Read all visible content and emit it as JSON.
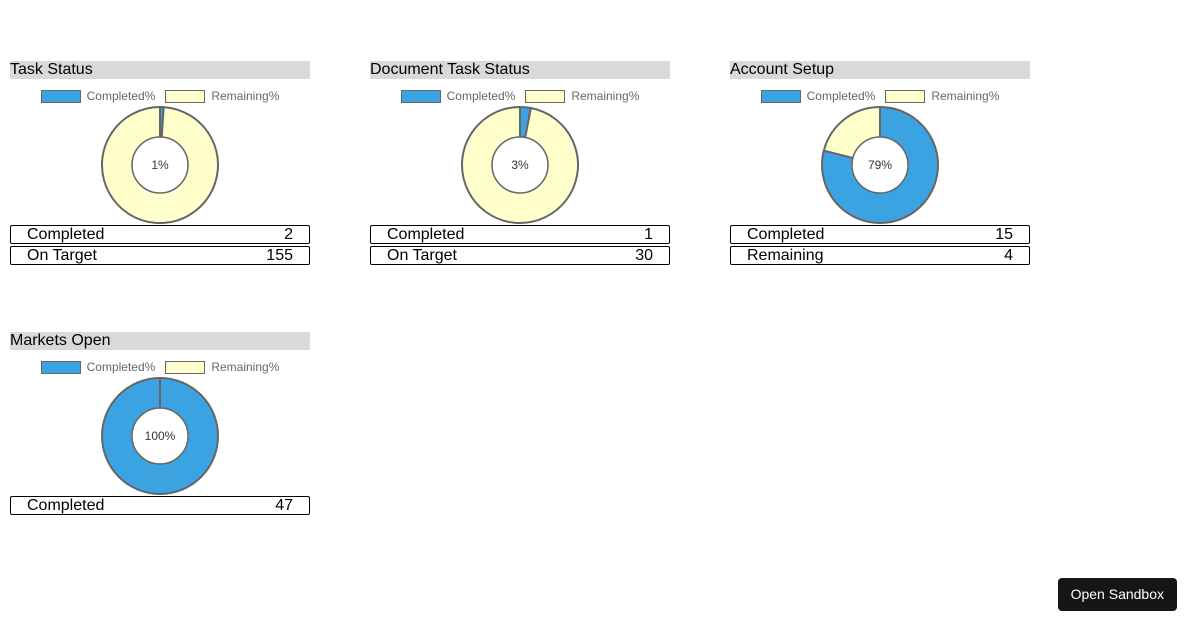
{
  "colors": {
    "completed": "#3ba3e1",
    "remaining": "#ffffcc",
    "stroke": "#666666"
  },
  "button": {
    "open_sandbox": "Open Sandbox"
  },
  "chart_data": [
    {
      "type": "pie",
      "title": "Task Status",
      "legend": [
        "Completed%",
        "Remaining%"
      ],
      "values": [
        1,
        99
      ],
      "center_label": "1%",
      "stats": [
        {
          "label": "Completed",
          "value": "2"
        },
        {
          "label": "On Target",
          "value": "155"
        }
      ]
    },
    {
      "type": "pie",
      "title": "Document Task Status",
      "legend": [
        "Completed%",
        "Remaining%"
      ],
      "values": [
        3,
        97
      ],
      "center_label": "3%",
      "stats": [
        {
          "label": "Completed",
          "value": "1"
        },
        {
          "label": "On Target",
          "value": "30"
        }
      ]
    },
    {
      "type": "pie",
      "title": "Account Setup",
      "legend": [
        "Completed%",
        "Remaining%"
      ],
      "values": [
        79,
        21
      ],
      "center_label": "79%",
      "stats": [
        {
          "label": "Completed",
          "value": "15"
        },
        {
          "label": "Remaining",
          "value": "4"
        }
      ]
    },
    {
      "type": "pie",
      "title": "Markets Open",
      "legend": [
        "Completed%",
        "Remaining%"
      ],
      "values": [
        100,
        0
      ],
      "center_label": "100%",
      "stats": [
        {
          "label": "Completed",
          "value": "47"
        }
      ]
    }
  ]
}
